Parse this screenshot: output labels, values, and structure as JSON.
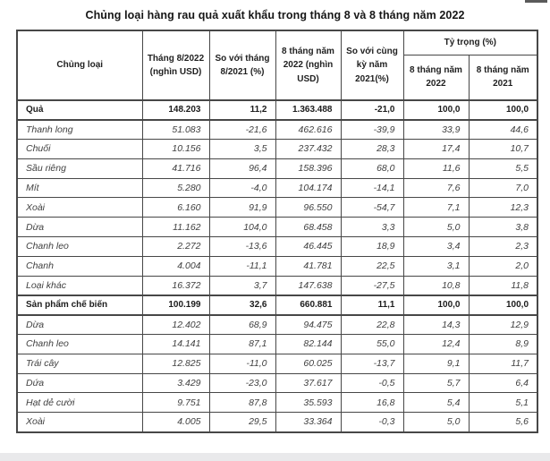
{
  "title": "Chủng loại hàng rau quả xuất khẩu trong tháng 8 và 8 tháng năm 2022",
  "table": {
    "headers": {
      "col_category": "Chủng loại",
      "col_month_value": "Tháng 8/2022 (nghìn USD)",
      "col_month_change": "So với tháng 8/2021 (%)",
      "col_ytd_value": "8 tháng năm 2022 (nghìn USD)",
      "col_ytd_change": "So với cùng kỳ năm 2021(%)",
      "col_share_group": "Tỷ trọng (%)",
      "col_share_2022": "8 tháng năm 2022",
      "col_share_2021": "8 tháng năm 2021"
    },
    "rows": [
      {
        "category": "Quả",
        "style": "group",
        "values": [
          "148.203",
          "11,2",
          "1.363.488",
          "-21,0",
          "100,0",
          "100,0"
        ]
      },
      {
        "category": "Thanh long",
        "style": "item",
        "values": [
          "51.083",
          "-21,6",
          "462.616",
          "-39,9",
          "33,9",
          "44,6"
        ]
      },
      {
        "category": "Chuối",
        "style": "item",
        "values": [
          "10.156",
          "3,5",
          "237.432",
          "28,3",
          "17,4",
          "10,7"
        ]
      },
      {
        "category": "Sầu riêng",
        "style": "item",
        "values": [
          "41.716",
          "96,4",
          "158.396",
          "68,0",
          "11,6",
          "5,5"
        ]
      },
      {
        "category": "Mít",
        "style": "item",
        "values": [
          "5.280",
          "-4,0",
          "104.174",
          "-14,1",
          "7,6",
          "7,0"
        ]
      },
      {
        "category": "Xoài",
        "style": "item",
        "values": [
          "6.160",
          "91,9",
          "96.550",
          "-54,7",
          "7,1",
          "12,3"
        ]
      },
      {
        "category": "Dừa",
        "style": "item",
        "values": [
          "11.162",
          "104,0",
          "68.458",
          "3,3",
          "5,0",
          "3,8"
        ]
      },
      {
        "category": "Chanh leo",
        "style": "item",
        "values": [
          "2.272",
          "-13,6",
          "46.445",
          "18,9",
          "3,4",
          "2,3"
        ]
      },
      {
        "category": "Chanh",
        "style": "item",
        "values": [
          "4.004",
          "-11,1",
          "41.781",
          "22,5",
          "3,1",
          "2,0"
        ]
      },
      {
        "category": "Loại khác",
        "style": "item",
        "values": [
          "16.372",
          "3,7",
          "147.638",
          "-27,5",
          "10,8",
          "11,8"
        ]
      },
      {
        "category": "Sản phẩm chế biến",
        "style": "group",
        "values": [
          "100.199",
          "32,6",
          "660.881",
          "11,1",
          "100,0",
          "100,0"
        ]
      },
      {
        "category": "Dừa",
        "style": "item",
        "values": [
          "12.402",
          "68,9",
          "94.475",
          "22,8",
          "14,3",
          "12,9"
        ]
      },
      {
        "category": "Chanh leo",
        "style": "item",
        "values": [
          "14.141",
          "87,1",
          "82.144",
          "55,0",
          "12,4",
          "8,9"
        ]
      },
      {
        "category": "Trái cây",
        "style": "item",
        "values": [
          "12.825",
          "-11,0",
          "60.025",
          "-13,7",
          "9,1",
          "11,7"
        ]
      },
      {
        "category": "Dứa",
        "style": "item",
        "values": [
          "3.429",
          "-23,0",
          "37.617",
          "-0,5",
          "5,7",
          "6,4"
        ]
      },
      {
        "category": "Hạt dẻ cười",
        "style": "item",
        "values": [
          "9.751",
          "87,8",
          "35.593",
          "16,8",
          "5,4",
          "5,1"
        ]
      },
      {
        "category": "Xoài",
        "style": "item",
        "values": [
          "4.005",
          "29,5",
          "33.364",
          "-0,3",
          "5,0",
          "5,6"
        ]
      }
    ]
  }
}
